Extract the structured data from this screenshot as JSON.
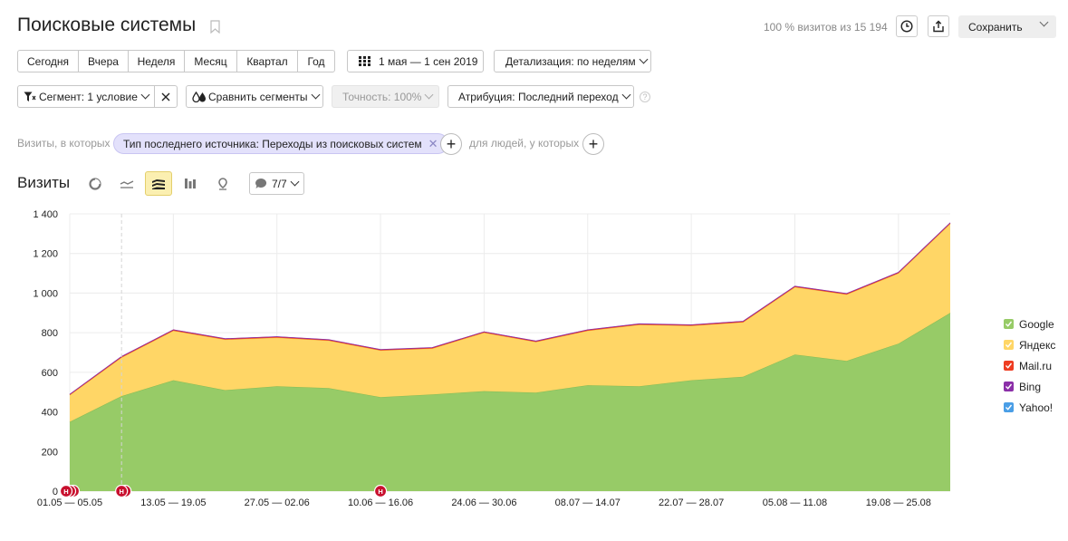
{
  "header": {
    "title": "Поисковые системы",
    "summary": "100 % визитов из 15 194",
    "save_label": "Сохранить"
  },
  "periods": [
    "Сегодня",
    "Вчера",
    "Неделя",
    "Месяц",
    "Квартал",
    "Год"
  ],
  "date_range": "1 мая — 1 сен 2019",
  "detail_label": "Детализация: по неделям",
  "filters": {
    "segment_label": "Сегмент: 1 условие",
    "compare_label": "Сравнить сегменты",
    "accuracy_label": "Точность: 100%",
    "attribution_label": "Атрибуция: Последний переход",
    "help": "?"
  },
  "condition": {
    "prefix": "Визиты, в которых",
    "chip": "Тип последнего источника: Переходы из поисковых систем",
    "suffix": "для людей, у которых"
  },
  "viz": {
    "title": "Визиты",
    "notes_label": "7/7"
  },
  "colors": {
    "google": "#97cb67",
    "yandex": "#ffd666",
    "mail": "#ee3d22",
    "bing": "#8b2fa8",
    "yahoo": "#4a9ee6"
  },
  "chart_data": {
    "type": "area",
    "stacked": true,
    "x": [
      "01.05 — 05.05",
      "06.05 — 12.05",
      "13.05 — 19.05",
      "20.05 — 26.05",
      "27.05 — 02.06",
      "03.06 — 09.06",
      "10.06 — 16.06",
      "17.06 — 23.06",
      "24.06 — 30.06",
      "01.07 — 07.07",
      "08.07 — 14.07",
      "15.07 — 21.07",
      "22.07 — 28.07",
      "29.07 — 04.08",
      "05.08 — 11.08",
      "12.08 — 18.08",
      "19.08 — 25.08",
      "26.08 — 01.09"
    ],
    "xticks": [
      "01.05 — 05.05",
      "13.05 — 19.05",
      "27.05 — 02.06",
      "10.06 — 16.06",
      "24.06 — 30.06",
      "08.07 — 14.07",
      "22.07 — 28.07",
      "05.08 — 11.08",
      "19.08 — 25.08"
    ],
    "yticks": [
      "0",
      "200",
      "400",
      "600",
      "800",
      "1 000",
      "1 200",
      "1 400"
    ],
    "ylim": [
      0,
      1400
    ],
    "series": [
      {
        "name": "Google",
        "values": [
          350,
          480,
          560,
          510,
          530,
          520,
          475,
          488,
          505,
          498,
          535,
          530,
          560,
          578,
          690,
          658,
          745,
          900
        ]
      },
      {
        "name": "Яндекс",
        "values": [
          135,
          195,
          250,
          255,
          245,
          240,
          235,
          232,
          295,
          255,
          275,
          310,
          275,
          275,
          340,
          335,
          355,
          450
        ]
      },
      {
        "name": "Mail.ru",
        "values": [
          3,
          4,
          4,
          4,
          4,
          4,
          4,
          4,
          4,
          4,
          4,
          4,
          4,
          4,
          4,
          4,
          4,
          4
        ]
      },
      {
        "name": "Bing",
        "values": [
          1,
          1,
          1,
          1,
          1,
          1,
          1,
          1,
          1,
          1,
          1,
          1,
          1,
          1,
          1,
          1,
          1,
          1
        ]
      },
      {
        "name": "Yahoo!",
        "values": [
          0,
          0,
          0,
          0,
          0,
          0,
          0,
          0,
          0,
          0,
          0,
          0,
          0,
          0,
          0,
          0,
          0,
          0
        ]
      }
    ],
    "annotations": [
      {
        "x": "01.05 — 05.05",
        "label": "Н"
      },
      {
        "x": "06.05 — 12.05",
        "label": "Н"
      },
      {
        "x": "10.06 — 16.06",
        "label": "Н"
      }
    ],
    "grid": true,
    "legend": "right"
  }
}
